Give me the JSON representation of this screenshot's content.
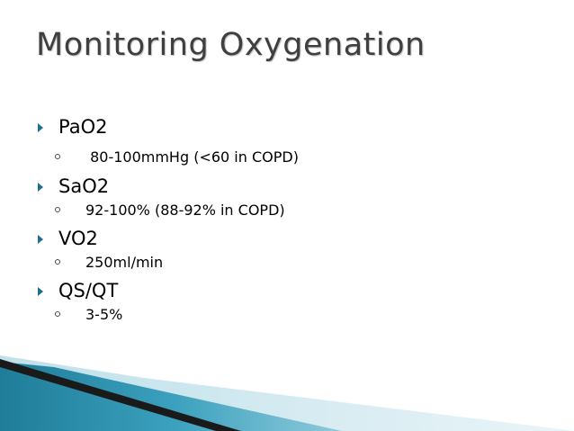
{
  "slide": {
    "title": "Monitoring Oxygenation",
    "bullets": [
      {
        "label": "PaO2",
        "sub": [
          " 80-100mmHg (<60 in COPD)"
        ]
      },
      {
        "label": "SaO2",
        "sub": [
          "92-100% (88-92% in COPD)"
        ]
      },
      {
        "label": "VO2",
        "sub": [
          "250ml/min"
        ]
      },
      {
        "label": "QS/QT",
        "sub": [
          "3-5%"
        ]
      }
    ]
  },
  "colors": {
    "title": "#3f3f3f",
    "bullet_marker": "#1f6e8c",
    "corner_dark": "#1a1a1a",
    "corner_teal": "#2a8aa6",
    "corner_light": "#cfe7ee"
  }
}
